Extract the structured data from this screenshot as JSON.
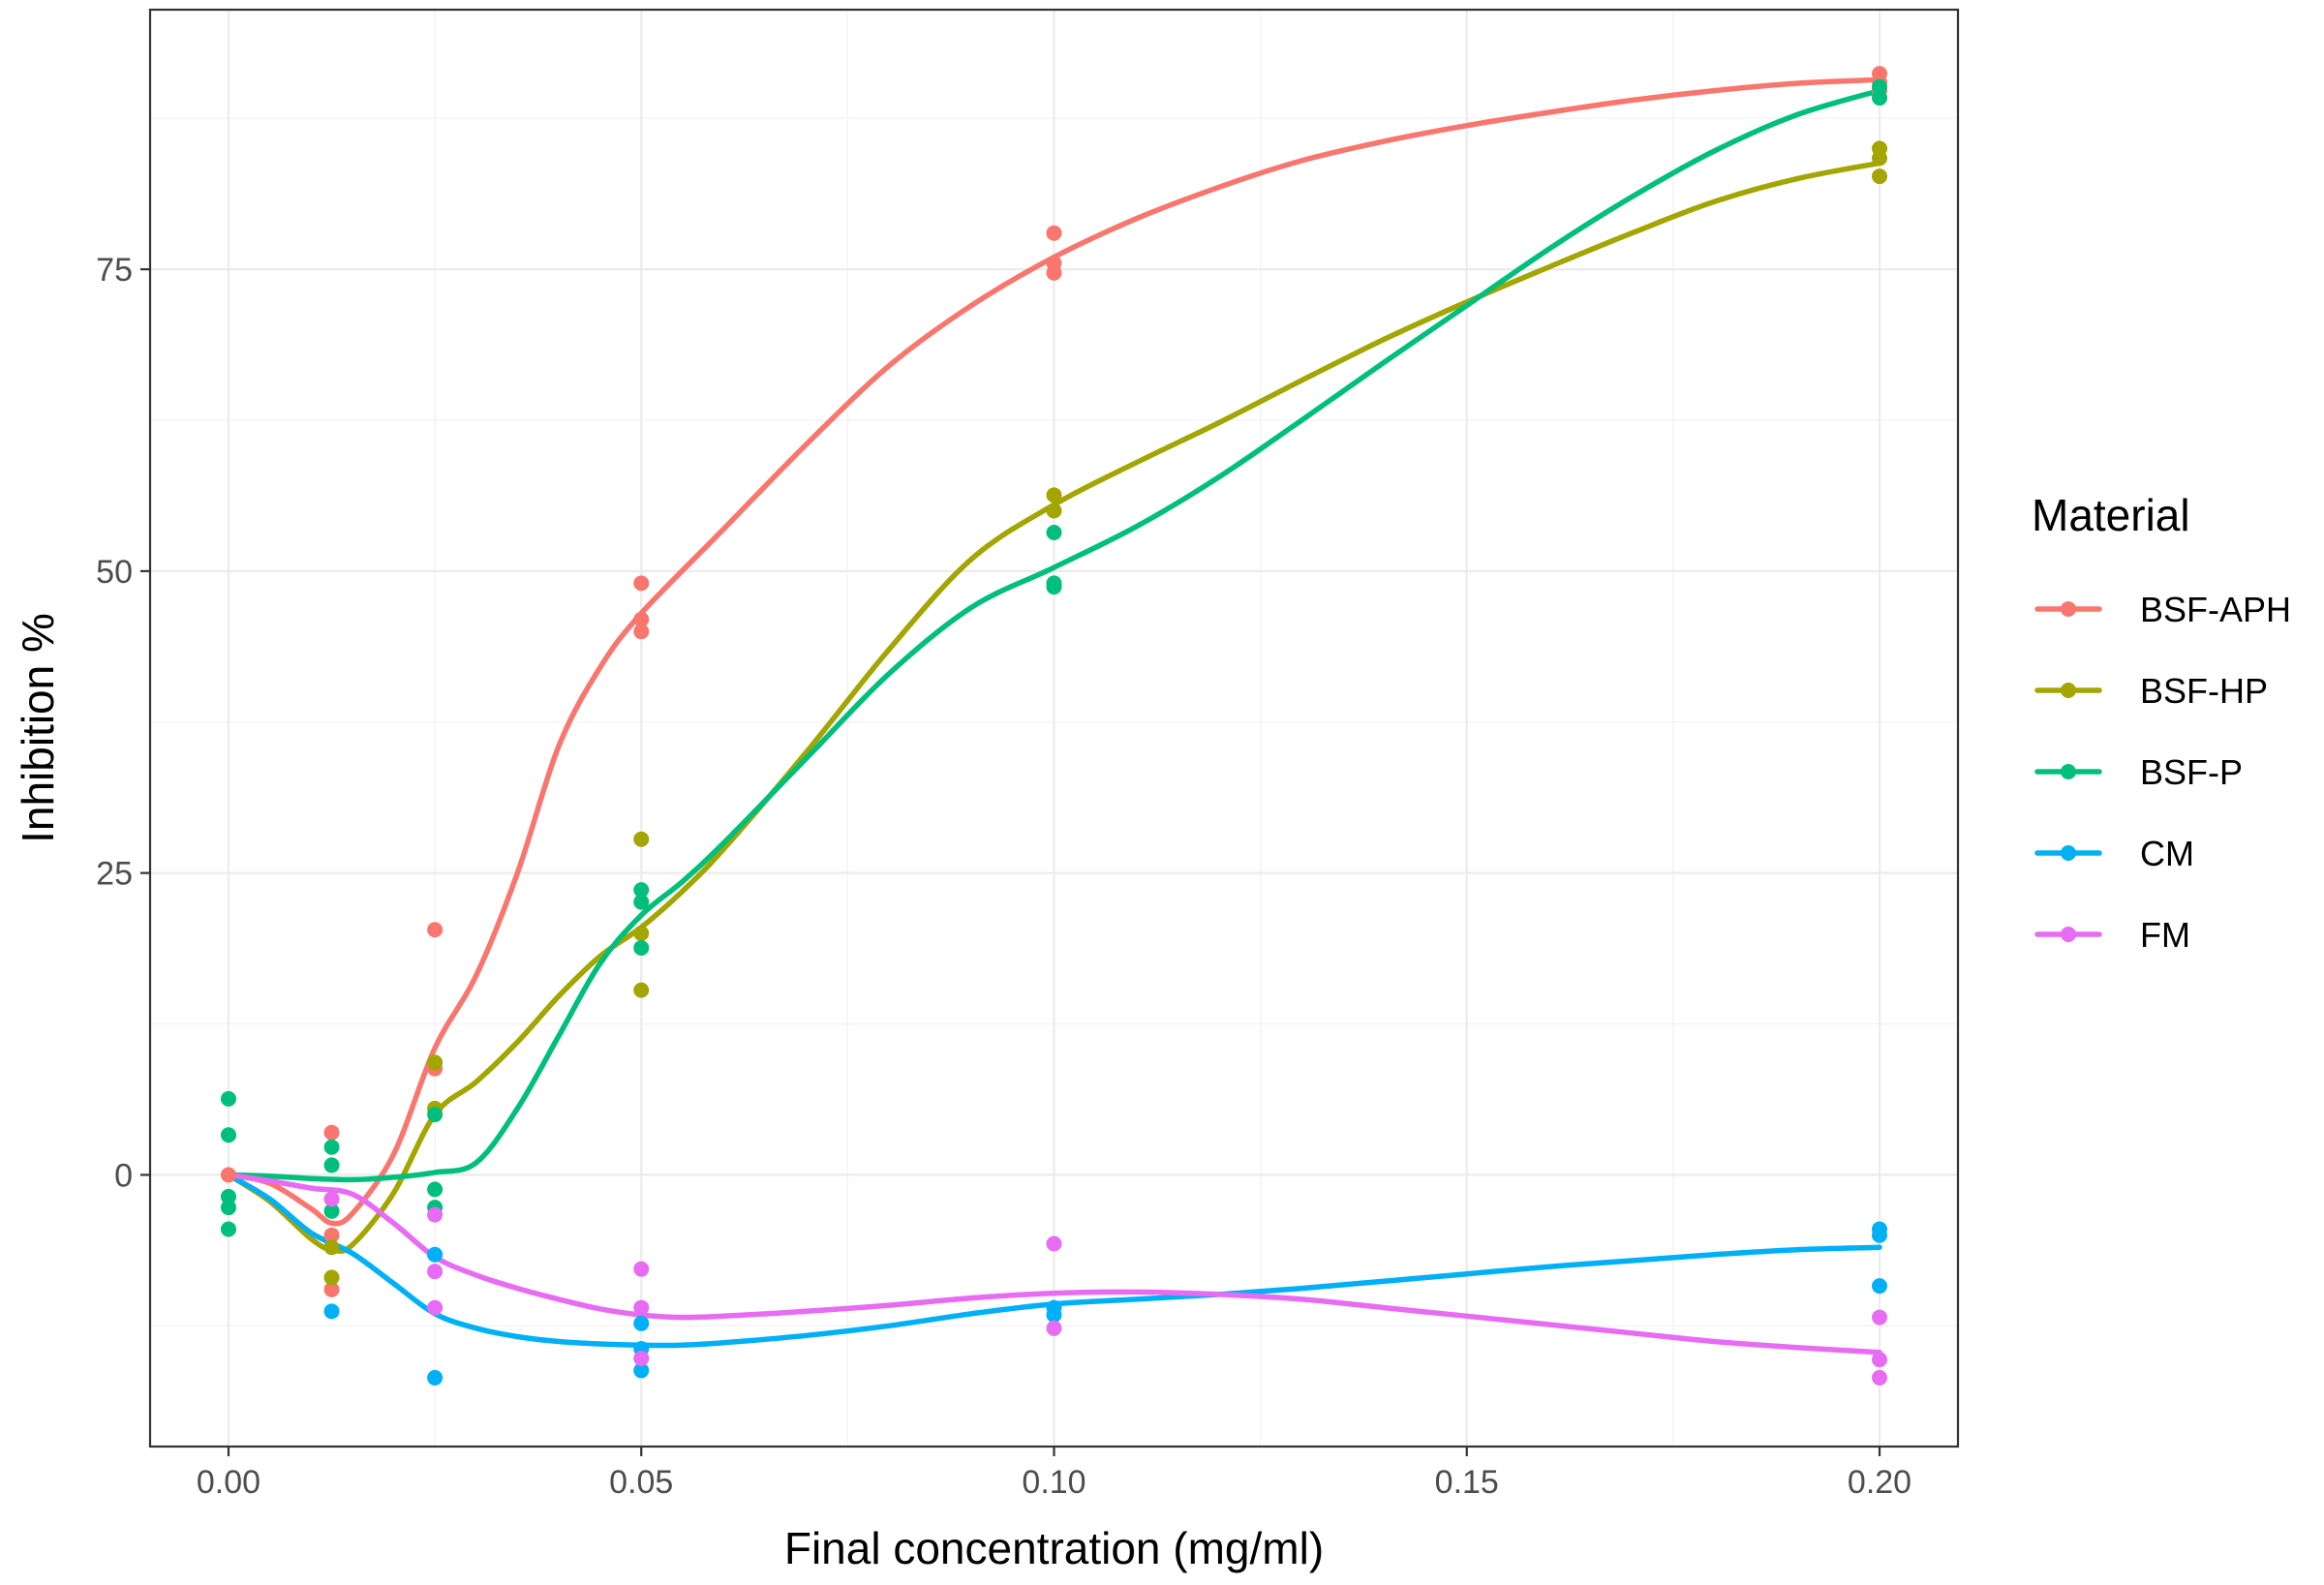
{
  "chart_data": {
    "type": "scatter",
    "title": "",
    "xlabel": "Final concentration (mg/ml)",
    "ylabel": "Inhibition %",
    "xlim": [
      -0.0095,
      0.2095
    ],
    "ylim": [
      -22.5,
      96.5
    ],
    "x_ticks": [
      0.0,
      0.05,
      0.1,
      0.15,
      0.2
    ],
    "x_tick_labels": [
      "0.00",
      "0.05",
      "0.10",
      "0.15",
      "0.20"
    ],
    "y_ticks": [
      0,
      25,
      50,
      75
    ],
    "y_tick_labels": [
      "0",
      "25",
      "50",
      "75"
    ],
    "grid": true,
    "legend": {
      "title": "Material",
      "position": "right"
    },
    "series": [
      {
        "name": "BSF-APH",
        "color": "#F8766D",
        "points": [
          [
            0,
            0
          ],
          [
            0.0125,
            3.5
          ],
          [
            0.0125,
            -5
          ],
          [
            0.0125,
            -9.5
          ],
          [
            0.025,
            20.3
          ],
          [
            0.025,
            9.3
          ],
          [
            0.025,
            8.8
          ],
          [
            0.05,
            49
          ],
          [
            0.05,
            46
          ],
          [
            0.05,
            45
          ],
          [
            0.1,
            78
          ],
          [
            0.1,
            75.5
          ],
          [
            0.1,
            74.7
          ],
          [
            0.2,
            91.2
          ],
          [
            0.2,
            90.5
          ],
          [
            0.2,
            89.8
          ]
        ],
        "curve": [
          [
            0,
            0
          ],
          [
            0.005,
            -0.7
          ],
          [
            0.01,
            -2.8
          ],
          [
            0.0125,
            -4
          ],
          [
            0.015,
            -3.2
          ],
          [
            0.02,
            1.7
          ],
          [
            0.025,
            10.5
          ],
          [
            0.03,
            16.5
          ],
          [
            0.035,
            25
          ],
          [
            0.04,
            35.5
          ],
          [
            0.045,
            42
          ],
          [
            0.05,
            46.5
          ],
          [
            0.06,
            53.5
          ],
          [
            0.07,
            60.5
          ],
          [
            0.08,
            67
          ],
          [
            0.09,
            72
          ],
          [
            0.1,
            76
          ],
          [
            0.11,
            79.2
          ],
          [
            0.12,
            81.8
          ],
          [
            0.13,
            84
          ],
          [
            0.14,
            85.6
          ],
          [
            0.15,
            86.9
          ],
          [
            0.16,
            88
          ],
          [
            0.17,
            89
          ],
          [
            0.18,
            89.8
          ],
          [
            0.19,
            90.4
          ],
          [
            0.2,
            90.7
          ]
        ]
      },
      {
        "name": "BSF-HP",
        "color": "#A3A500",
        "points": [
          [
            0.0125,
            -8.5
          ],
          [
            0.0125,
            -6
          ],
          [
            0.025,
            9.3
          ],
          [
            0.025,
            5.5
          ],
          [
            0.05,
            27.8
          ],
          [
            0.05,
            20
          ],
          [
            0.05,
            15.3
          ],
          [
            0.1,
            56.3
          ],
          [
            0.1,
            55
          ],
          [
            0.2,
            85
          ],
          [
            0.2,
            84.2
          ],
          [
            0.2,
            82.7
          ]
        ],
        "curve": [
          [
            0,
            0
          ],
          [
            0.005,
            -2.2
          ],
          [
            0.01,
            -5.3
          ],
          [
            0.0125,
            -6.2
          ],
          [
            0.015,
            -5.8
          ],
          [
            0.02,
            -1.5
          ],
          [
            0.025,
            5
          ],
          [
            0.03,
            7.7
          ],
          [
            0.035,
            11
          ],
          [
            0.04,
            14.8
          ],
          [
            0.045,
            18.1
          ],
          [
            0.05,
            20.5
          ],
          [
            0.055,
            23.5
          ],
          [
            0.06,
            27
          ],
          [
            0.07,
            35
          ],
          [
            0.08,
            43.5
          ],
          [
            0.09,
            51
          ],
          [
            0.1,
            55.5
          ],
          [
            0.11,
            59
          ],
          [
            0.12,
            62.3
          ],
          [
            0.13,
            65.8
          ],
          [
            0.14,
            69.2
          ],
          [
            0.15,
            72.3
          ],
          [
            0.16,
            75.2
          ],
          [
            0.17,
            78
          ],
          [
            0.18,
            80.6
          ],
          [
            0.19,
            82.5
          ],
          [
            0.2,
            83.8
          ]
        ]
      },
      {
        "name": "BSF-P",
        "color": "#00BF7D",
        "points": [
          [
            0,
            6.3
          ],
          [
            0,
            3.3
          ],
          [
            0,
            -1.8
          ],
          [
            0,
            -2.7
          ],
          [
            0,
            -4.5
          ],
          [
            0.0125,
            2.3
          ],
          [
            0.0125,
            0.8
          ],
          [
            0.0125,
            -3
          ],
          [
            0.025,
            5
          ],
          [
            0.025,
            -1.2
          ],
          [
            0.025,
            -2.7
          ],
          [
            0.05,
            23.6
          ],
          [
            0.05,
            22.6
          ],
          [
            0.05,
            18.8
          ],
          [
            0.1,
            53.2
          ],
          [
            0.1,
            49
          ],
          [
            0.1,
            48.7
          ],
          [
            0.2,
            90.1
          ],
          [
            0.2,
            89.2
          ]
        ],
        "curve": [
          [
            0,
            0
          ],
          [
            0.005,
            -0.1
          ],
          [
            0.01,
            -0.3
          ],
          [
            0.015,
            -0.4
          ],
          [
            0.02,
            -0.2
          ],
          [
            0.025,
            0.2
          ],
          [
            0.03,
            1
          ],
          [
            0.035,
            5.5
          ],
          [
            0.04,
            11.5
          ],
          [
            0.045,
            17.5
          ],
          [
            0.05,
            21.5
          ],
          [
            0.055,
            24.3
          ],
          [
            0.06,
            27.5
          ],
          [
            0.07,
            34.5
          ],
          [
            0.08,
            41.5
          ],
          [
            0.09,
            47
          ],
          [
            0.1,
            50.3
          ],
          [
            0.11,
            53.7
          ],
          [
            0.12,
            57.8
          ],
          [
            0.13,
            62.5
          ],
          [
            0.14,
            67.3
          ],
          [
            0.15,
            72
          ],
          [
            0.16,
            76.7
          ],
          [
            0.17,
            81
          ],
          [
            0.18,
            84.8
          ],
          [
            0.19,
            87.8
          ],
          [
            0.2,
            89.8
          ]
        ]
      },
      {
        "name": "CM",
        "color": "#00B0F6",
        "points": [
          [
            0.0125,
            -11.3
          ],
          [
            0.025,
            -6.6
          ],
          [
            0.025,
            -16.8
          ],
          [
            0.05,
            -12.3
          ],
          [
            0.05,
            -14.4
          ],
          [
            0.05,
            -16.2
          ],
          [
            0.1,
            -11
          ],
          [
            0.1,
            -11.6
          ],
          [
            0.2,
            -4.5
          ],
          [
            0.2,
            -5
          ],
          [
            0.2,
            -9.2
          ]
        ],
        "curve": [
          [
            0,
            0
          ],
          [
            0.005,
            -2
          ],
          [
            0.01,
            -4.8
          ],
          [
            0.015,
            -6.5
          ],
          [
            0.02,
            -9
          ],
          [
            0.025,
            -11.5
          ],
          [
            0.03,
            -12.7
          ],
          [
            0.035,
            -13.4
          ],
          [
            0.04,
            -13.8
          ],
          [
            0.045,
            -14
          ],
          [
            0.05,
            -14.1
          ],
          [
            0.055,
            -14.1
          ],
          [
            0.06,
            -13.9
          ],
          [
            0.07,
            -13.3
          ],
          [
            0.08,
            -12.5
          ],
          [
            0.09,
            -11.5
          ],
          [
            0.1,
            -10.7
          ],
          [
            0.11,
            -10.3
          ],
          [
            0.12,
            -9.9
          ],
          [
            0.13,
            -9.4
          ],
          [
            0.14,
            -8.8
          ],
          [
            0.15,
            -8.2
          ],
          [
            0.16,
            -7.6
          ],
          [
            0.17,
            -7.1
          ],
          [
            0.18,
            -6.6
          ],
          [
            0.19,
            -6.2
          ],
          [
            0.2,
            -6
          ]
        ]
      },
      {
        "name": "FM",
        "color": "#E76BF3",
        "points": [
          [
            0.0125,
            -2
          ],
          [
            0.025,
            -3.3
          ],
          [
            0.025,
            -8
          ],
          [
            0.025,
            -11
          ],
          [
            0.05,
            -7.8
          ],
          [
            0.05,
            -11
          ],
          [
            0.05,
            -15.2
          ],
          [
            0.1,
            -5.7
          ],
          [
            0.1,
            -12.7
          ],
          [
            0.2,
            -11.8
          ],
          [
            0.2,
            -15.3
          ],
          [
            0.2,
            -16.8
          ]
        ],
        "curve": [
          [
            0,
            0
          ],
          [
            0.005,
            -0.5
          ],
          [
            0.01,
            -1.1
          ],
          [
            0.015,
            -1.6
          ],
          [
            0.02,
            -4
          ],
          [
            0.025,
            -6.8
          ],
          [
            0.03,
            -8.3
          ],
          [
            0.035,
            -9.4
          ],
          [
            0.04,
            -10.3
          ],
          [
            0.045,
            -11.1
          ],
          [
            0.05,
            -11.6
          ],
          [
            0.055,
            -11.8
          ],
          [
            0.06,
            -11.7
          ],
          [
            0.07,
            -11.3
          ],
          [
            0.08,
            -10.8
          ],
          [
            0.09,
            -10.2
          ],
          [
            0.1,
            -9.8
          ],
          [
            0.11,
            -9.7
          ],
          [
            0.12,
            -9.9
          ],
          [
            0.13,
            -10.3
          ],
          [
            0.14,
            -11
          ],
          [
            0.15,
            -11.7
          ],
          [
            0.16,
            -12.4
          ],
          [
            0.17,
            -13.1
          ],
          [
            0.18,
            -13.8
          ],
          [
            0.19,
            -14.3
          ],
          [
            0.2,
            -14.7
          ]
        ]
      }
    ]
  }
}
